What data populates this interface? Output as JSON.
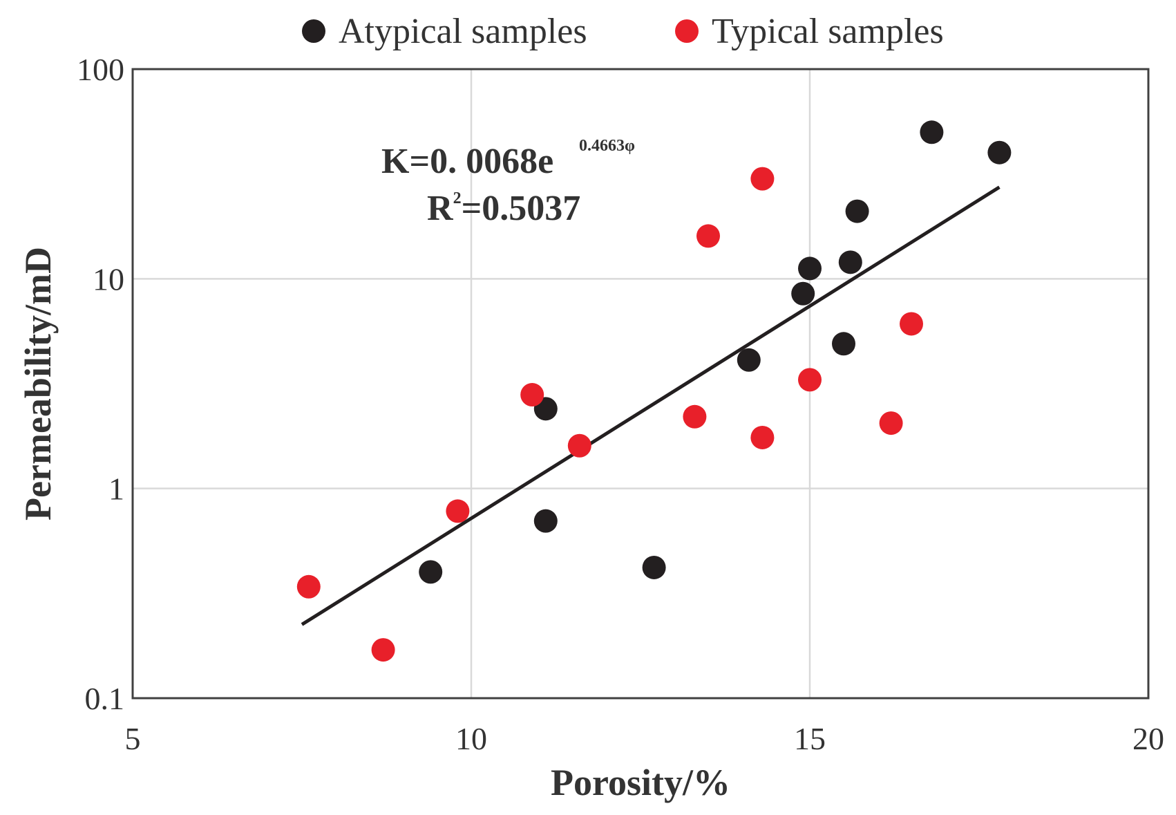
{
  "chart_data": {
    "type": "scatter",
    "title": "",
    "xlabel": "Porosity/%",
    "ylabel": "Permeability/mD",
    "xlim": [
      5,
      20
    ],
    "ylim": [
      0.1,
      100
    ],
    "yscale": "log",
    "grid": true,
    "x_ticks": [
      5,
      10,
      15,
      20
    ],
    "x_tick_labels": [
      "5",
      "10",
      "15",
      "20"
    ],
    "y_ticks": [
      0.1,
      1,
      10,
      100
    ],
    "y_tick_labels": [
      "0.1",
      "1",
      "10",
      "100"
    ],
    "legend_position": "top",
    "series": [
      {
        "name": "Atypical samples",
        "color": "#231f20",
        "points": [
          {
            "x": 9.4,
            "y": 0.4
          },
          {
            "x": 11.1,
            "y": 2.4
          },
          {
            "x": 11.1,
            "y": 0.7
          },
          {
            "x": 12.7,
            "y": 0.42
          },
          {
            "x": 14.1,
            "y": 4.1
          },
          {
            "x": 14.9,
            "y": 8.5
          },
          {
            "x": 15.0,
            "y": 11.2
          },
          {
            "x": 15.5,
            "y": 4.9
          },
          {
            "x": 15.6,
            "y": 12.0
          },
          {
            "x": 15.7,
            "y": 21.0
          },
          {
            "x": 16.8,
            "y": 50.0
          },
          {
            "x": 17.8,
            "y": 40.0
          }
        ]
      },
      {
        "name": "Typical samples",
        "color": "#e8202a",
        "points": [
          {
            "x": 7.6,
            "y": 0.34
          },
          {
            "x": 8.7,
            "y": 0.17
          },
          {
            "x": 9.8,
            "y": 0.78
          },
          {
            "x": 10.9,
            "y": 2.8
          },
          {
            "x": 11.6,
            "y": 1.6
          },
          {
            "x": 13.3,
            "y": 2.2
          },
          {
            "x": 13.5,
            "y": 16.0
          },
          {
            "x": 14.3,
            "y": 30.0
          },
          {
            "x": 14.3,
            "y": 1.75
          },
          {
            "x": 15.0,
            "y": 3.3
          },
          {
            "x": 16.2,
            "y": 2.05
          },
          {
            "x": 16.5,
            "y": 6.1
          }
        ]
      }
    ],
    "trendline": {
      "type": "exponential",
      "a": 0.0068,
      "b": 0.4663,
      "x_range": [
        7.5,
        17.8
      ],
      "color": "#231f20"
    },
    "annotation": {
      "equation_main": "K=0. 0068e",
      "equation_exponent": "0.4663φ",
      "r2_prefix": "R",
      "r2_sup": "2",
      "r2_value": "=0.5037"
    }
  }
}
